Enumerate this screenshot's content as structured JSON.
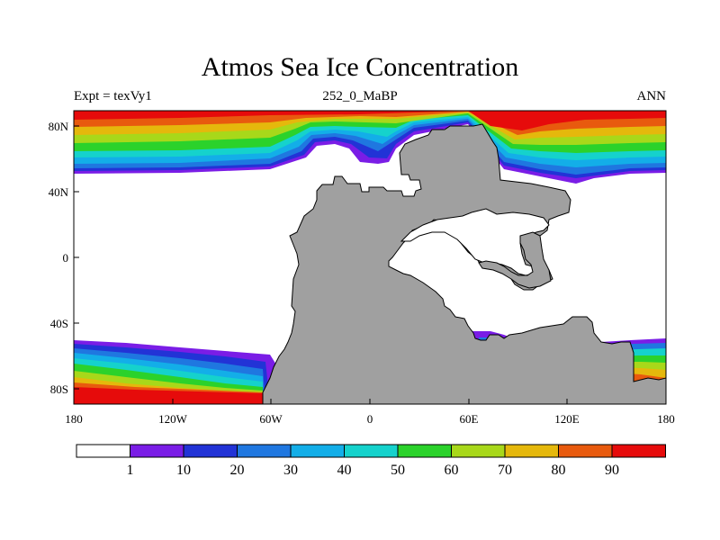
{
  "title": "Atmos Sea Ice Concentration",
  "left_label": "Expt = texVy1",
  "center_label": "252_0_MaBP",
  "right_label": "ANN",
  "x_ticks": [
    "180",
    "120W",
    "60W",
    "0",
    "60E",
    "120E",
    "180"
  ],
  "y_ticks": [
    "80N",
    "40N",
    "0",
    "40S",
    "80S"
  ],
  "colorbar": {
    "labels": [
      "1",
      "10",
      "20",
      "30",
      "40",
      "50",
      "60",
      "70",
      "80",
      "90"
    ],
    "colors": [
      "#ffffff",
      "#7a1de6",
      "#2233d6",
      "#1f77e0",
      "#13aee8",
      "#15d2cc",
      "#2bd22b",
      "#a8d81a",
      "#e5b80c",
      "#e85a0e",
      "#e60b0b"
    ]
  },
  "land_color": "#a0a0a0"
}
